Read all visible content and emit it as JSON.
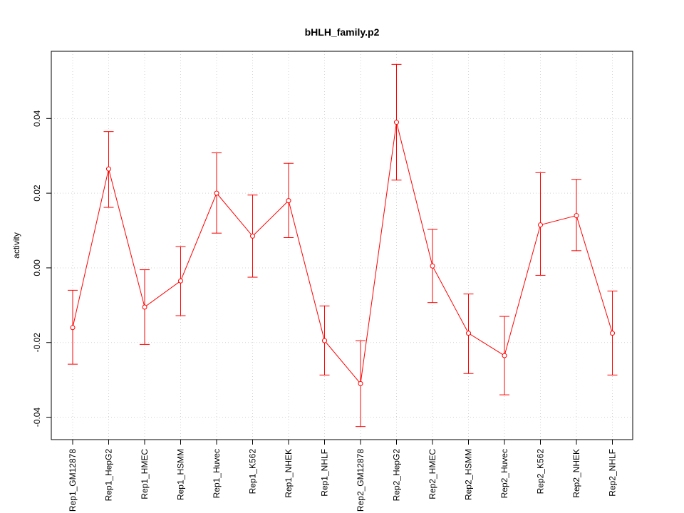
{
  "chart_data": {
    "type": "line",
    "title": "bHLH_family.p2",
    "xlabel": "",
    "ylabel": "activity",
    "ylim": [
      -0.046,
      0.058
    ],
    "yticks": [
      -0.04,
      -0.02,
      0.0,
      0.02,
      0.04
    ],
    "ytick_labels": [
      "-0.04",
      "-0.02",
      "0.00",
      "0.02",
      "0.04"
    ],
    "grid": true,
    "color": "#ff0000",
    "categories": [
      "Rep1_GM12878",
      "Rep1_HepG2",
      "Rep1_HMEC",
      "Rep1_HSMM",
      "Rep1_Huvec",
      "Rep1_K562",
      "Rep1_NHEK",
      "Rep1_NHLF",
      "Rep2_GM12878",
      "Rep2_HepG2",
      "Rep2_HMEC",
      "Rep2_HSMM",
      "Rep2_Huvec",
      "Rep2_K562",
      "Rep2_NHEK",
      "Rep2_NHLF"
    ],
    "values": [
      -0.016,
      0.0265,
      -0.0105,
      -0.0035,
      0.02,
      0.0085,
      0.018,
      -0.0195,
      -0.031,
      0.039,
      0.0005,
      -0.0175,
      -0.0235,
      0.0115,
      0.014,
      -0.0175
    ],
    "error_upper": [
      -0.006,
      0.0365,
      -0.0005,
      0.0057,
      0.0308,
      0.0195,
      0.028,
      -0.0102,
      -0.0195,
      0.0545,
      0.0103,
      -0.007,
      -0.013,
      0.0255,
      0.0237,
      -0.0062
    ],
    "error_lower": [
      -0.0258,
      0.0162,
      -0.0205,
      -0.0128,
      0.0093,
      -0.0025,
      0.0081,
      -0.0287,
      -0.0425,
      0.0235,
      -0.0093,
      -0.0283,
      -0.034,
      -0.002,
      0.0046,
      -0.0287
    ]
  }
}
